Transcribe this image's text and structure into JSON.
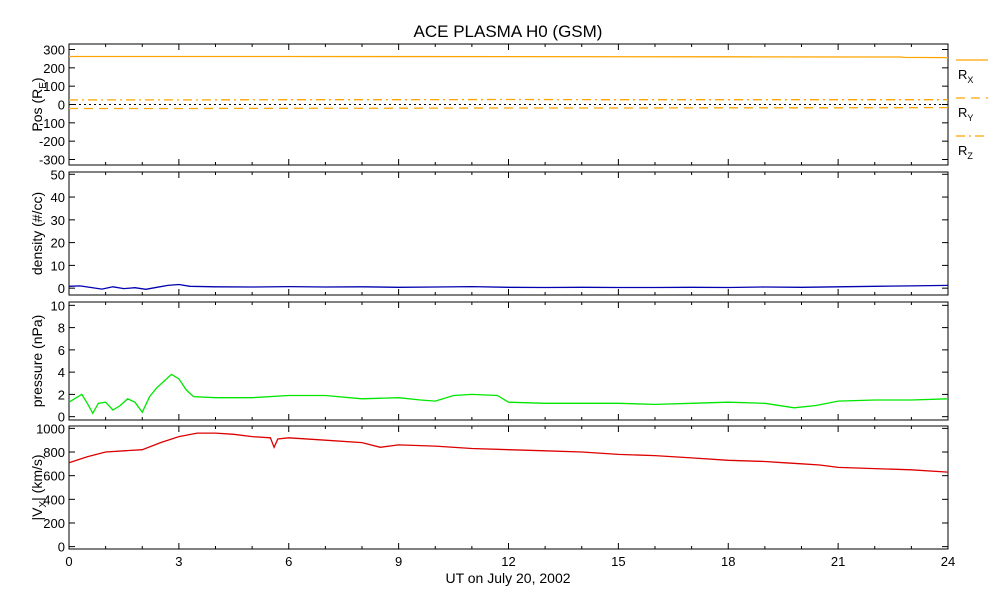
{
  "chart_data": {
    "type": "line",
    "title": "ACE PLASMA H0 (GSM)",
    "xlabel": "UT on July 20, 2002",
    "xlim": [
      0,
      24
    ],
    "xticks": [
      0,
      3,
      6,
      9,
      12,
      15,
      18,
      21,
      24
    ],
    "panels": [
      {
        "id": "pos",
        "ylabel": "Pos (R",
        "ylabel_sub": "E",
        "ylabel_tail": ")",
        "ylim": [
          -330,
          330
        ],
        "yticks": [
          -300,
          -200,
          -100,
          0,
          100,
          200,
          300
        ],
        "zero_line": true,
        "legend": [
          {
            "label": "R",
            "sub": "X",
            "style": "solid"
          },
          {
            "label": "R",
            "sub": "Y",
            "style": "dash"
          },
          {
            "label": "R",
            "sub": "Z",
            "style": "dashdot"
          }
        ],
        "series": [
          {
            "key": "R_X",
            "color": "#FFA500",
            "style": "solid",
            "x": [
              0,
              6,
              12,
              18,
              22.7,
              22.8,
              24
            ],
            "y": [
              262,
              262,
              261,
              260,
              259,
              257,
              256
            ]
          },
          {
            "key": "R_Y",
            "color": "#FFA500",
            "style": "dash",
            "x": [
              0,
              3,
              6,
              9,
              12,
              15,
              18,
              21,
              24
            ],
            "y": [
              -22,
              -22,
              -21,
              -20,
              -19,
              -19,
              -18,
              -18,
              -17
            ]
          },
          {
            "key": "R_Z",
            "color": "#FFA500",
            "style": "dashdot",
            "x": [
              0,
              3,
              6,
              9,
              12,
              15,
              18,
              21,
              24
            ],
            "y": [
              25,
              25,
              26,
              26,
              27,
              26,
              26,
              26,
              26
            ]
          }
        ]
      },
      {
        "id": "density",
        "ylabel": "density (#/cc)",
        "ylim": [
          -3,
          51
        ],
        "yticks": [
          0,
          10,
          20,
          30,
          40,
          50
        ],
        "series": [
          {
            "color": "#0000B0",
            "x": [
              0,
              0.3,
              0.6,
              0.9,
              1.2,
              1.5,
              1.8,
              2.1,
              2.4,
              2.7,
              3.0,
              3.3,
              4,
              5,
              6,
              7,
              8,
              9,
              10,
              11,
              12,
              13,
              14,
              15,
              16,
              17,
              18,
              19,
              20,
              21,
              22,
              23,
              24
            ],
            "y": [
              0.8,
              1.0,
              0.3,
              -0.4,
              0.6,
              -0.2,
              0.2,
              -0.5,
              0.4,
              1.2,
              1.6,
              0.8,
              0.6,
              0.5,
              0.7,
              0.5,
              0.6,
              0.4,
              0.5,
              0.7,
              0.4,
              0.3,
              0.4,
              0.3,
              0.3,
              0.4,
              0.3,
              0.5,
              0.4,
              0.6,
              0.8,
              1.0,
              1.2
            ]
          }
        ]
      },
      {
        "id": "pressure",
        "ylabel": "pressure (nPa)",
        "ylim": [
          -0.3,
          10.3
        ],
        "yticks": [
          0,
          2,
          4,
          6,
          8,
          10
        ],
        "series": [
          {
            "color": "#00E600",
            "x": [
              0,
              0.2,
              0.35,
              0.5,
              0.65,
              0.8,
              1.0,
              1.2,
              1.4,
              1.6,
              1.8,
              2.0,
              2.2,
              2.4,
              2.6,
              2.8,
              3.0,
              3.2,
              3.4,
              4,
              5,
              6,
              7,
              8,
              9,
              9.6,
              10,
              10.5,
              11,
              11.7,
              12,
              13,
              14,
              15,
              16,
              17,
              18,
              19,
              19.8,
              20.4,
              21,
              22,
              23,
              24
            ],
            "y": [
              1.3,
              1.7,
              2.0,
              1.2,
              0.3,
              1.2,
              1.3,
              0.6,
              1.0,
              1.6,
              1.3,
              0.4,
              1.8,
              2.6,
              3.2,
              3.8,
              3.4,
              2.4,
              1.8,
              1.7,
              1.7,
              1.9,
              1.9,
              1.6,
              1.7,
              1.5,
              1.4,
              1.9,
              2.0,
              1.9,
              1.3,
              1.2,
              1.2,
              1.2,
              1.1,
              1.2,
              1.3,
              1.2,
              0.8,
              1.0,
              1.4,
              1.5,
              1.5,
              1.6
            ]
          }
        ]
      },
      {
        "id": "vx",
        "ylabel": "|V",
        "ylabel_sub": "X",
        "ylabel_tail": "| (km/s)",
        "ylim": [
          -20,
          1020
        ],
        "yticks": [
          0,
          200,
          400,
          600,
          800,
          1000
        ],
        "series": [
          {
            "color": "#DD0000",
            "x": [
              0,
              0.5,
              1.0,
              1.5,
              2.0,
              2.5,
              3.0,
              3.5,
              4.0,
              4.5,
              5.0,
              5.5,
              5.6,
              5.7,
              6.0,
              7,
              8,
              8.5,
              9,
              10,
              11,
              12,
              13,
              14,
              15,
              16,
              17,
              18,
              19,
              19.5,
              20,
              20.5,
              21,
              22,
              23,
              24
            ],
            "y": [
              710,
              760,
              800,
              810,
              820,
              880,
              930,
              960,
              960,
              950,
              930,
              920,
              840,
              910,
              920,
              900,
              880,
              840,
              860,
              850,
              830,
              820,
              810,
              800,
              780,
              770,
              750,
              730,
              720,
              710,
              700,
              690,
              670,
              660,
              650,
              630
            ]
          }
        ]
      }
    ]
  }
}
